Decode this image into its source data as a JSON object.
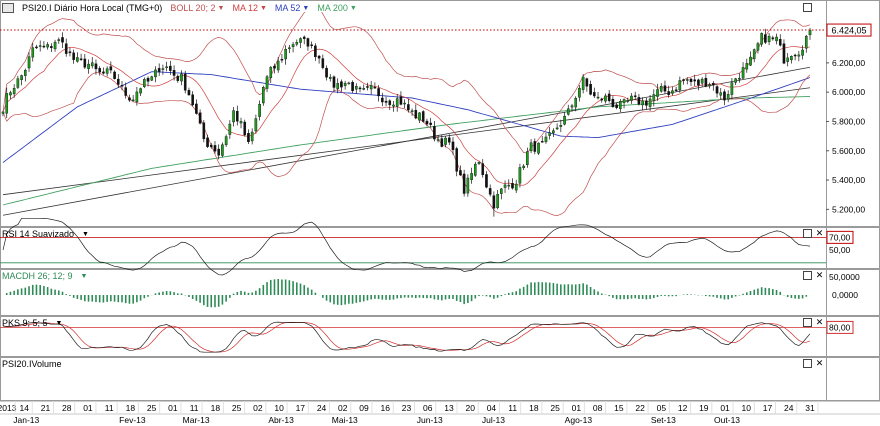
{
  "header": {
    "symbol_label": "PSI20.I Diário Hora Local (TMG+0)",
    "boll_label": "BOLL 20; 2",
    "ma12_label": "MA 12",
    "ma52_label": "MA 52",
    "ma200_label": "MA 200",
    "last_price": "6.424,05"
  },
  "colors": {
    "boll": "#c05050",
    "ma12": "#d04040",
    "ma52": "#3040c0",
    "ma200": "#40a060",
    "rsi": "#202020",
    "rsi_signal": "#c00000",
    "macd": "#2e8b57",
    "pks_k": "#202020",
    "pks_d": "#d03030",
    "price_box": "#c00000",
    "trend": "#333333"
  },
  "panels": {
    "rsi": {
      "label": "RSI 14 Suavizado",
      "ticks": [
        "70,00",
        "50,00"
      ],
      "highlight": "70,00"
    },
    "macd": {
      "label": "MACDH 26; 12; 9",
      "ticks": [
        "50,0000",
        "0,0000"
      ]
    },
    "pks": {
      "label": "PKS 9; 5; 5",
      "ticks": [
        "80,00"
      ],
      "highlight": "80,00"
    },
    "volume": {
      "label": "PSI20.IVolume"
    }
  },
  "chart_data": {
    "type": "candlestick",
    "title": "PSI20.I Diário Hora Local (TMG+0)",
    "y_ticks": [
      "6.200,00",
      "6.000,00",
      "5.800,00",
      "5.600,00",
      "5.400,00",
      "5.200,00"
    ],
    "y_tick_values": [
      6200,
      6000,
      5800,
      5600,
      5400,
      5200
    ],
    "ylim": [
      5100,
      6520
    ],
    "last_value": 6424.05,
    "x_day_labels": [
      "2013",
      "14",
      "21",
      "28",
      "01",
      "11",
      "18",
      "25",
      "01",
      "11",
      "18",
      "25",
      "02",
      "10",
      "17",
      "24",
      "02",
      "09",
      "16",
      "23",
      "06",
      "13",
      "20",
      "04",
      "11",
      "18",
      "25",
      "01",
      "08",
      "15",
      "22",
      "05",
      "12",
      "19",
      "01",
      "10",
      "17",
      "24",
      "31"
    ],
    "x_month_labels": [
      "Jan-13",
      "Fev-13",
      "Mar-13",
      "Abr-13",
      "Mai-13",
      "Jun-13",
      "Jul-13",
      "Ago-13",
      "Set-13",
      "Out-13"
    ],
    "close_keyframes": [
      [
        0,
        5900
      ],
      [
        8,
        6270
      ],
      [
        14,
        6350
      ],
      [
        22,
        6180
      ],
      [
        28,
        6130
      ],
      [
        35,
        5960
      ],
      [
        42,
        6170
      ],
      [
        48,
        6110
      ],
      [
        54,
        5700
      ],
      [
        58,
        5560
      ],
      [
        62,
        5880
      ],
      [
        66,
        5630
      ],
      [
        70,
        6030
      ],
      [
        76,
        6300
      ],
      [
        82,
        6360
      ],
      [
        88,
        6080
      ],
      [
        94,
        6030
      ],
      [
        102,
        5980
      ],
      [
        110,
        5880
      ],
      [
        116,
        5720
      ],
      [
        120,
        5630
      ],
      [
        124,
        5350
      ],
      [
        128,
        5520
      ],
      [
        132,
        5250
      ],
      [
        138,
        5420
      ],
      [
        142,
        5610
      ],
      [
        148,
        5700
      ],
      [
        152,
        5880
      ],
      [
        156,
        6060
      ],
      [
        160,
        5960
      ],
      [
        164,
        5920
      ],
      [
        170,
        5930
      ],
      [
        176,
        5980
      ],
      [
        182,
        6060
      ],
      [
        188,
        6080
      ],
      [
        194,
        5980
      ],
      [
        198,
        6110
      ],
      [
        204,
        6350
      ],
      [
        208,
        6380
      ],
      [
        210,
        6220
      ],
      [
        214,
        6300
      ],
      [
        217,
        6424
      ]
    ],
    "ma52_keyframes": [
      [
        0,
        5520
      ],
      [
        20,
        5900
      ],
      [
        40,
        6140
      ],
      [
        56,
        6120
      ],
      [
        80,
        6020
      ],
      [
        110,
        5960
      ],
      [
        125,
        5880
      ],
      [
        150,
        5700
      ],
      [
        160,
        5690
      ],
      [
        180,
        5780
      ],
      [
        200,
        5950
      ],
      [
        217,
        6100
      ]
    ],
    "ma200_keyframes": [
      [
        0,
        5230
      ],
      [
        40,
        5480
      ],
      [
        80,
        5640
      ],
      [
        120,
        5780
      ],
      [
        160,
        5900
      ],
      [
        200,
        5960
      ],
      [
        217,
        5970
      ]
    ],
    "trendlines": [
      {
        "from": [
          0,
          5300
        ],
        "to": [
          217,
          6030
        ]
      },
      {
        "from": [
          0,
          5160
        ],
        "to": [
          217,
          6170
        ]
      }
    ]
  }
}
